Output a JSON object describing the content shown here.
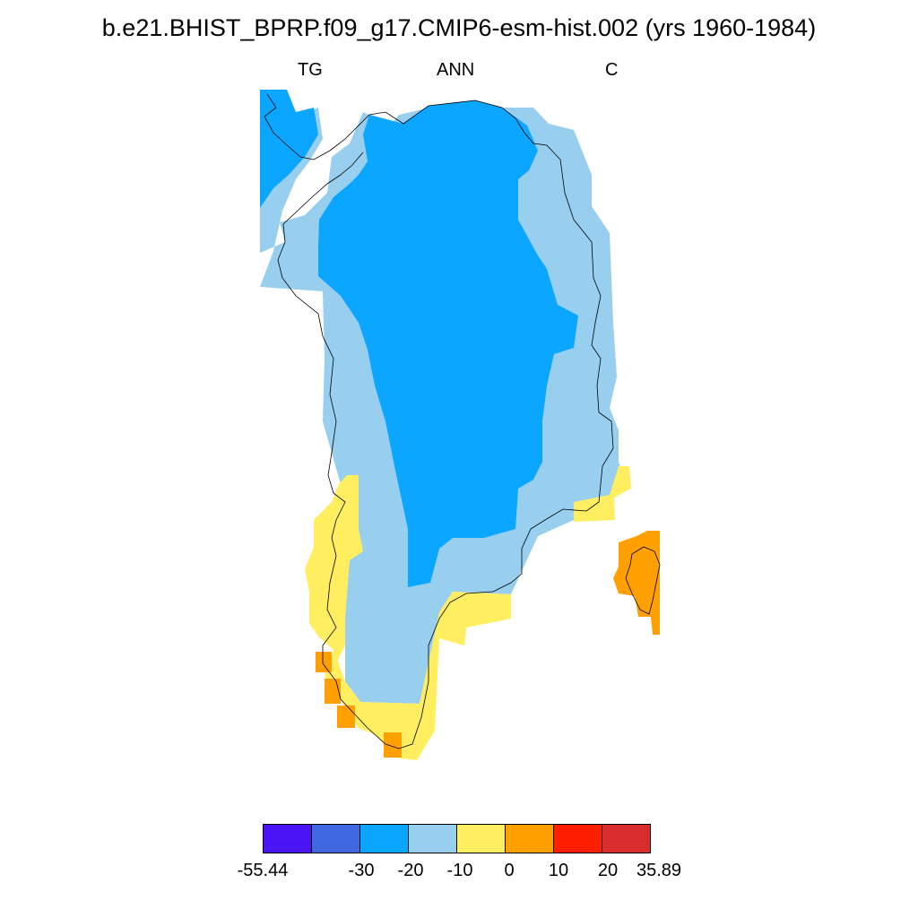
{
  "title": "b.e21.BHIST_BPRP.f09_g17.CMIP6-esm-hist.002 (yrs 1960-1984)",
  "subtitles": {
    "left": "TG",
    "center": "ANN",
    "right": "C"
  },
  "colors": {
    "c1": "#4a14f5",
    "c2": "#3f67e0",
    "c3": "#0aa6ff",
    "c4": "#98cfee",
    "c5": "#ffee60",
    "c6": "#ffa000",
    "c7": "#ff1e00",
    "c8": "#d72d2d",
    "coast": "#000000"
  },
  "colorbar": {
    "colors": [
      "#4a14f5",
      "#3f67e0",
      "#0aa6ff",
      "#98cfee",
      "#ffee60",
      "#ffa000",
      "#ff1e00",
      "#d72d2d"
    ],
    "labels": [
      "-55.44",
      "-30",
      "-20",
      "-10",
      "0",
      "10",
      "20",
      "35.89"
    ]
  }
}
